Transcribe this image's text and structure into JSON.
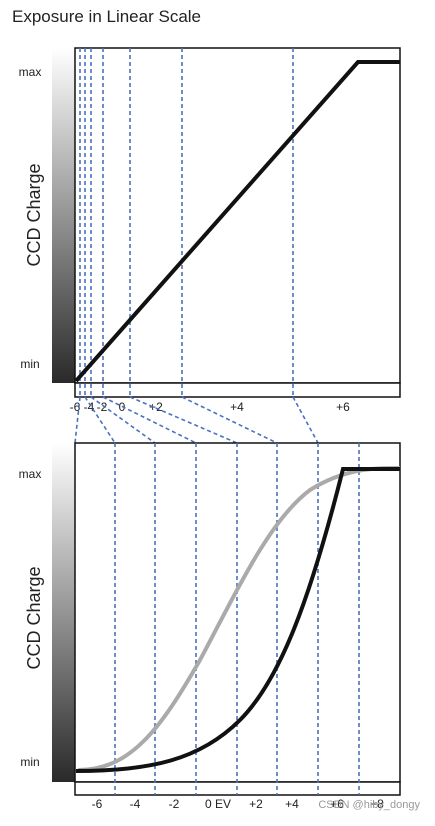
{
  "title": "Exposure in Linear Scale",
  "panels": [
    {
      "y_label": "CCD Charge",
      "max": "max",
      "min": "min",
      "x_labels": [
        "-6",
        "-4",
        "-2",
        "0",
        "+2",
        "+4",
        "+6"
      ]
    },
    {
      "y_label": "CCD Charge",
      "max": "max",
      "min": "min",
      "x_labels": [
        "-6",
        "-4",
        "-2",
        "0 EV",
        "+2",
        "+4",
        "+6",
        "+8"
      ]
    }
  ],
  "watermark": "CSDN @hiby_dongy"
}
